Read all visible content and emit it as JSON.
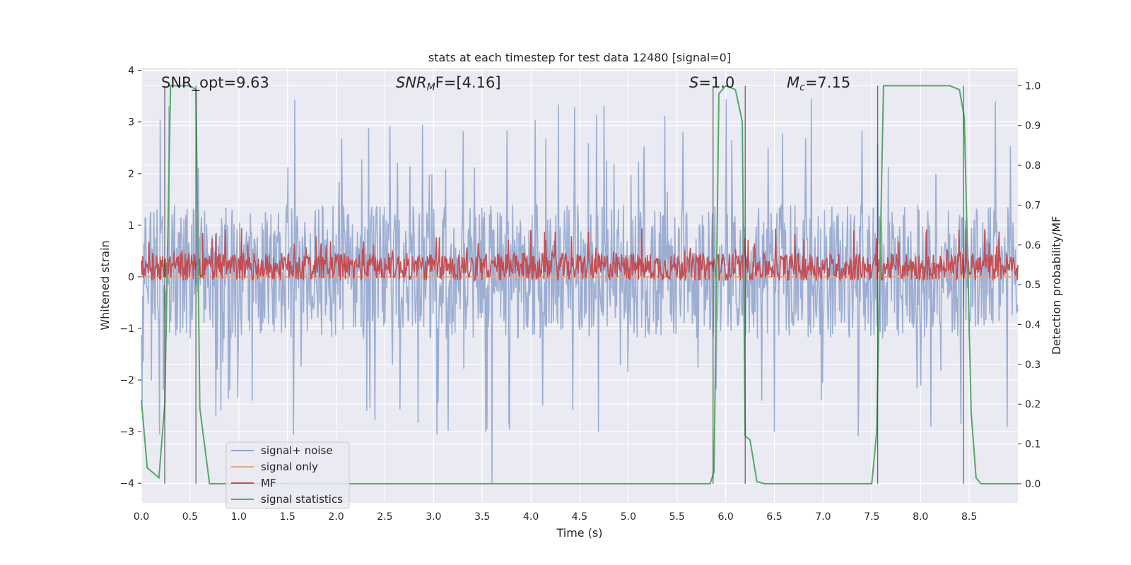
{
  "chart_data": {
    "type": "line",
    "title": "stats at each timestep for test data 12480 [signal=0]",
    "xlabel": "Time (s)",
    "ylabel_left": "Whitened strain",
    "ylabel_right": "Detection probability/MF",
    "xlim": [
      0,
      9
    ],
    "ylim_left": [
      -4.38,
      4.05
    ],
    "ylim_right": [
      -0.048,
      1.045
    ],
    "x_ticks": [
      "0.0",
      "0.5",
      "1.0",
      "1.5",
      "2.0",
      "2.5",
      "3.0",
      "3.5",
      "4.0",
      "4.5",
      "5.0",
      "5.5",
      "6.0",
      "6.5",
      "7.0",
      "7.5",
      "8.0",
      "8.5"
    ],
    "y_left_ticks": [
      "4",
      "3",
      "2",
      "1",
      "0",
      "−1",
      "−2",
      "−3",
      "−4"
    ],
    "y_right_ticks": [
      "1.0",
      "0.9",
      "0.8",
      "0.7",
      "0.6",
      "0.5",
      "0.4",
      "0.3",
      "0.2",
      "0.1",
      "0.0"
    ],
    "grid": true,
    "legend_placement": "lower-left",
    "annotations": {
      "snr_opt": "SNR_opt=9.63",
      "snr_mf_italic": "SNR",
      "snr_mf_sub": "M",
      "snr_mf_rest": "F=[4.16]",
      "s_italic": "S",
      "s_rest": "=1.0",
      "mc_italic": "M",
      "mc_sub": "c",
      "mc_rest": "=7.15"
    },
    "series": [
      {
        "name": "signal+ noise",
        "color": "#8ea3cc",
        "axis": "left",
        "description_envelope": {
          "typical_range": [
            -1.9,
            2.2
          ],
          "peak_max": 3.45,
          "peak_min": -4.0
        }
      },
      {
        "name": "signal only",
        "color": "#e9a58a",
        "axis": "left",
        "x": [
          0,
          9
        ],
        "y": [
          0,
          0
        ]
      },
      {
        "name": "MF",
        "color": "#c44e52",
        "axis": "right",
        "description_envelope": {
          "typical_range": [
            0.51,
            0.59
          ],
          "peak_max": 0.645
        }
      },
      {
        "name": "signal statistics",
        "color": "#55a868",
        "axis": "right",
        "x": [
          0,
          0.06,
          0.18,
          0.24,
          0.3,
          0.4,
          0.5,
          0.56,
          0.6,
          0.7,
          1.0,
          2.0,
          3.0,
          4.0,
          5.0,
          5.7,
          5.84,
          5.88,
          5.93,
          6.0,
          6.1,
          6.17,
          6.2,
          6.25,
          6.32,
          6.4,
          7.0,
          7.5,
          7.55,
          7.62,
          7.8,
          8.0,
          8.3,
          8.4,
          8.45,
          8.52,
          8.57,
          8.62,
          8.7,
          9.0
        ],
        "y": [
          0.21,
          0.04,
          0.015,
          0.2,
          1.0,
          1.0,
          1.0,
          0.99,
          0.19,
          0.0,
          0.0,
          0.0,
          0.0,
          0.0,
          0.0,
          0.0,
          0.0,
          0.03,
          0.98,
          1.0,
          0.99,
          0.91,
          0.12,
          0.11,
          0.005,
          0.0,
          0.0,
          0.0,
          0.13,
          1.0,
          1.0,
          1.0,
          1.0,
          0.99,
          0.92,
          0.18,
          0.015,
          0.0,
          0.0,
          0.0
        ]
      }
    ],
    "vertical_lines_x": [
      0.24,
      0.56,
      5.87,
      6.2,
      7.56,
      8.44
    ]
  }
}
